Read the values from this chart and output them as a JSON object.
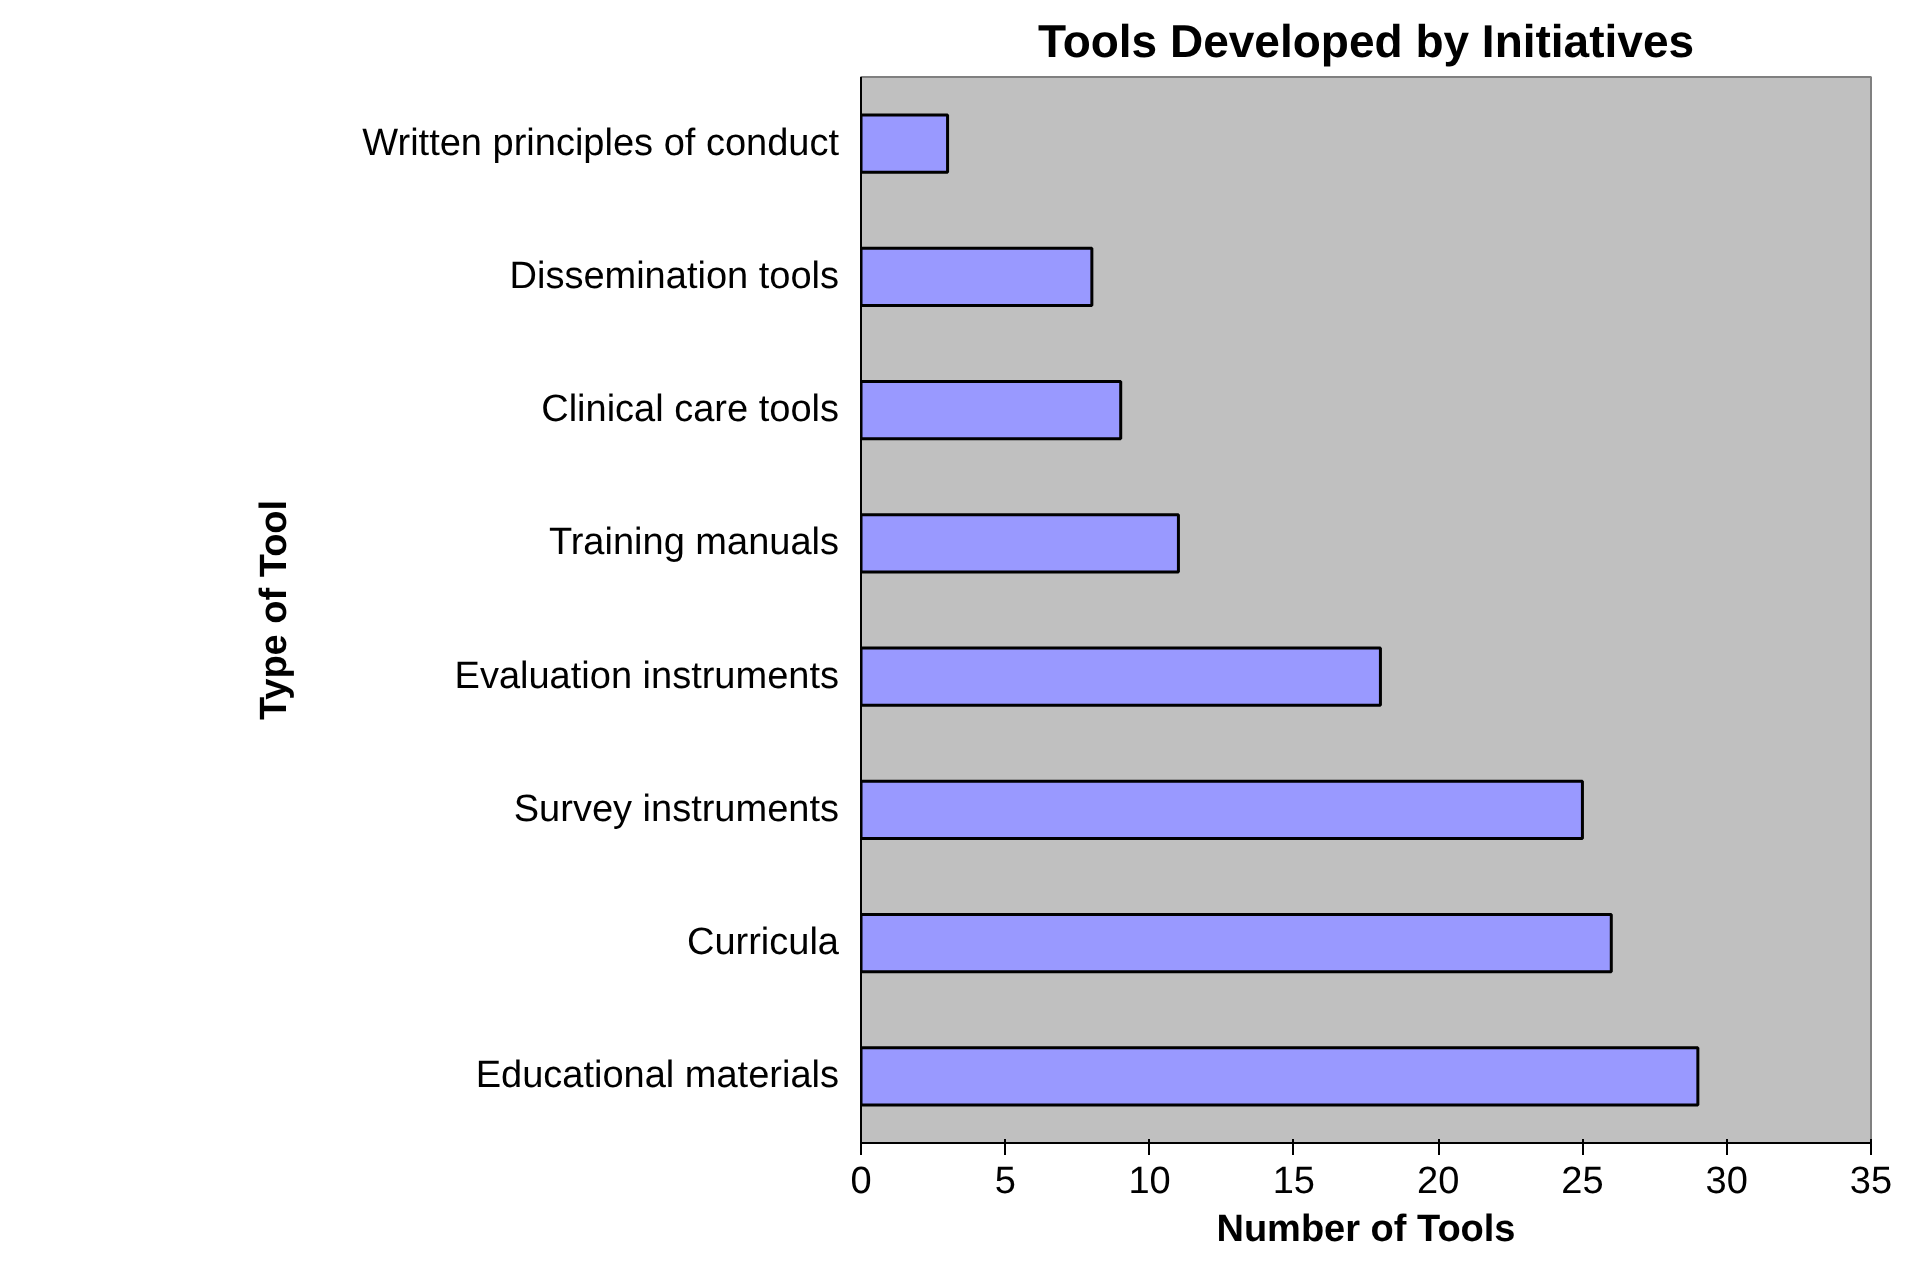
{
  "chart_data": {
    "type": "bar",
    "orientation": "horizontal",
    "title": "Tools Developed by Initiatives",
    "xlabel": "Number of Tools",
    "ylabel": "Type of Tool",
    "categories": [
      "Written principles of conduct",
      "Dissemination tools",
      "Clinical care tools",
      "Training manuals",
      "Evaluation instruments",
      "Survey instruments",
      "Curricula",
      "Educational materials"
    ],
    "values": [
      3,
      8,
      9,
      11,
      18,
      25,
      26,
      29
    ],
    "color": "#9999ff",
    "xlim": [
      0,
      35
    ],
    "xticks": [
      0,
      5,
      10,
      15,
      20,
      25,
      30,
      35
    ],
    "grid": false
  }
}
